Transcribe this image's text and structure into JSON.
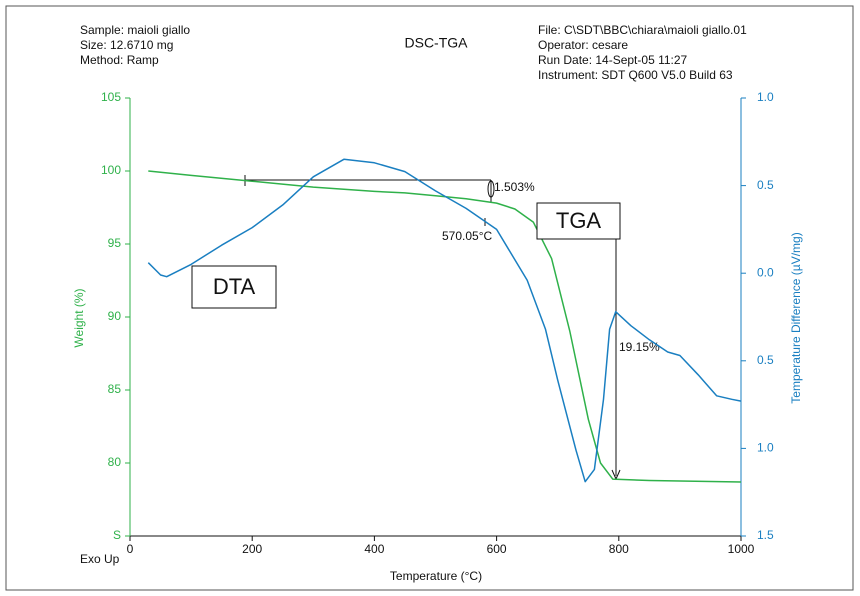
{
  "chart_data": {
    "type": "line",
    "title": "DSC-TGA",
    "info_left": [
      "Sample: maioli giallo",
      "Size: 12.6710 mg",
      "Method: Ramp"
    ],
    "info_right": [
      "File: C\\SDT\\BBC\\chiara\\maioli giallo.01",
      "Operator: cesare",
      "Run Date: 14-Sept-05 11:27",
      "Instrument: SDT Q600 V5.0 Build 63"
    ],
    "xlabel": "Temperature (°C)",
    "ylabel": "Weight (%)",
    "y2label": "Temperature Difference (µV/mg)",
    "corner_label": "Exo Up",
    "annotations": [
      "1.503%",
      "570.05°C",
      "19.15%"
    ],
    "xlim": [
      0,
      1000
    ],
    "xticks": [
      0,
      200,
      400,
      600,
      800,
      1000
    ],
    "ylim": [
      75,
      105
    ],
    "yticks": [
      {
        "value": 75,
        "label": "S"
      },
      80,
      85,
      90,
      95,
      100,
      105
    ],
    "y2lim": [
      -1.5,
      1.0
    ],
    "y2ticks": [
      {
        "value": -1.5,
        "label": "1.5"
      },
      {
        "value": -1,
        "label": "1.0"
      },
      {
        "value": -0.5,
        "label": "0.5"
      },
      {
        "value": 0,
        "label": "0.0"
      },
      0.5,
      {
        "value": 1,
        "label": "1.0"
      }
    ],
    "series": [
      {
        "name": "TGA",
        "color": "#2fb14a",
        "x": [
          30,
          100,
          200,
          300,
          400,
          450,
          500,
          550,
          600,
          630,
          660,
          690,
          720,
          750,
          770,
          790,
          850,
          1000
        ],
        "values": [
          100.0,
          99.7,
          99.3,
          98.9,
          98.6,
          98.5,
          98.3,
          98.1,
          97.8,
          97.4,
          96.5,
          94.0,
          89.0,
          83.0,
          80.0,
          78.9,
          78.8,
          78.7
        ]
      },
      {
        "name": "DTA",
        "color": "#1a7fc1",
        "axis": "y2",
        "x": [
          30,
          50,
          60,
          100,
          150,
          200,
          250,
          300,
          350,
          400,
          450,
          500,
          550,
          600,
          650,
          680,
          700,
          730,
          745,
          760,
          775,
          785,
          795,
          820,
          850,
          880,
          900,
          930,
          960,
          985,
          1000
        ],
        "values": [
          0.06,
          -0.01,
          -0.02,
          0.05,
          0.16,
          0.26,
          0.39,
          0.55,
          0.65,
          0.63,
          0.58,
          0.47,
          0.37,
          0.25,
          -0.04,
          -0.32,
          -0.61,
          -1.01,
          -1.19,
          -1.12,
          -0.72,
          -0.32,
          -0.22,
          -0.3,
          -0.38,
          -0.45,
          -0.47,
          -0.58,
          -0.7,
          -0.72,
          -0.73
        ]
      }
    ]
  }
}
